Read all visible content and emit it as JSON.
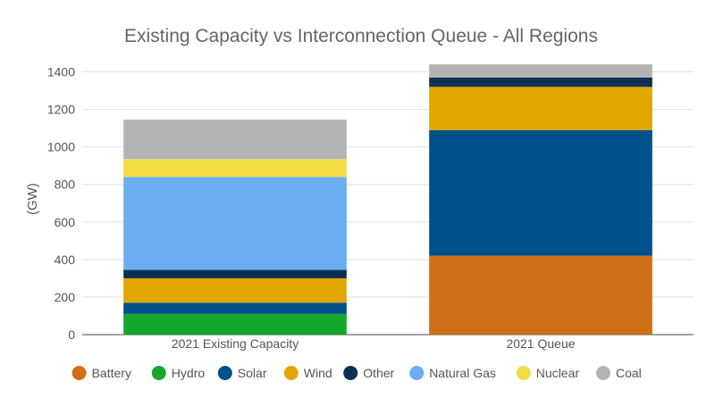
{
  "chart_data": {
    "type": "bar",
    "stacked": true,
    "title": "Existing Capacity vs Interconnection Queue - All Regions",
    "xlabel": "",
    "ylabel": "(GW)",
    "ylim": [
      0,
      1450
    ],
    "yticks": [
      0,
      200,
      400,
      600,
      800,
      1000,
      1200,
      1400
    ],
    "grid": true,
    "legend_position": "bottom",
    "categories": [
      "2021 Existing Capacity",
      "2021 Queue"
    ],
    "series": [
      {
        "name": "Battery",
        "color": "#cf6f17",
        "values": [
          0,
          420
        ]
      },
      {
        "name": "Hydro",
        "color": "#15a62c",
        "values": [
          110,
          0
        ]
      },
      {
        "name": "Solar",
        "color": "#00508a",
        "values": [
          60,
          670
        ]
      },
      {
        "name": "Wind",
        "color": "#e2a600",
        "values": [
          130,
          230
        ]
      },
      {
        "name": "Other",
        "color": "#0e2f53",
        "values": [
          45,
          50
        ]
      },
      {
        "name": "Natural Gas",
        "color": "#6aaef0",
        "values": [
          495,
          0
        ]
      },
      {
        "name": "Nuclear",
        "color": "#f3dc44",
        "values": [
          95,
          0
        ]
      },
      {
        "name": "Coal",
        "color": "#b3b3b3",
        "values": [
          210,
          70
        ]
      }
    ]
  }
}
